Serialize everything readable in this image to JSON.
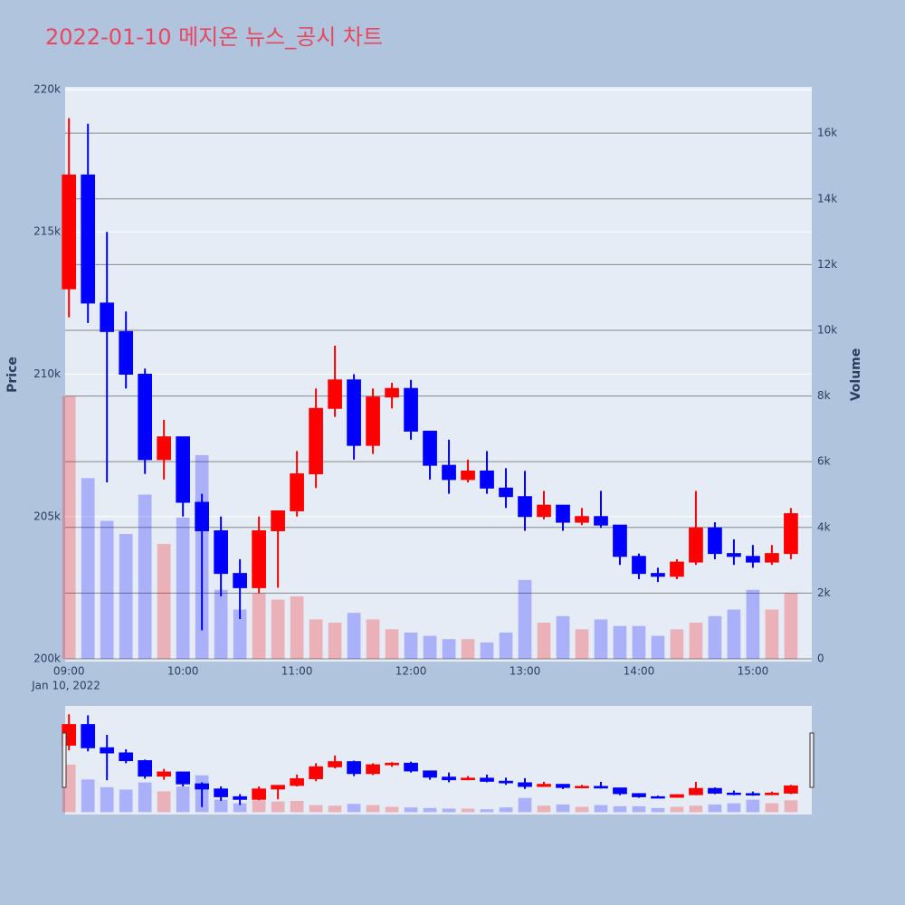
{
  "chart_data": {
    "type": "candlestick",
    "title": "2022-01-10 메지온 뉴스_공시 차트",
    "ylabel": "Price",
    "y2label": "Volume",
    "x_annotation": "Jan 10, 2022",
    "x": [
      "09:00",
      "09:10",
      "09:20",
      "09:30",
      "09:40",
      "09:50",
      "10:00",
      "10:10",
      "10:20",
      "10:30",
      "10:40",
      "10:50",
      "11:00",
      "11:10",
      "11:20",
      "11:30",
      "11:40",
      "11:50",
      "12:00",
      "12:10",
      "12:20",
      "12:30",
      "12:40",
      "12:50",
      "13:00",
      "13:10",
      "13:20",
      "13:30",
      "13:40",
      "13:50",
      "14:00",
      "14:10",
      "14:20",
      "14:30",
      "14:40",
      "14:50",
      "15:00",
      "15:10",
      "15:20"
    ],
    "open": [
      213000,
      217000,
      212500,
      211500,
      210000,
      207000,
      207800,
      205500,
      204500,
      203000,
      202500,
      204500,
      205200,
      206500,
      208800,
      209800,
      207500,
      209200,
      209500,
      208000,
      206800,
      206300,
      206600,
      206000,
      205700,
      205000,
      205400,
      204800,
      205000,
      204700,
      203600,
      203000,
      202900,
      203400,
      204600,
      203700,
      203600,
      203400,
      203700
    ],
    "high": [
      219000,
      218800,
      215000,
      212200,
      210200,
      208400,
      207800,
      205800,
      205000,
      203500,
      205000,
      205000,
      207300,
      209500,
      211000,
      210000,
      209500,
      209700,
      209800,
      208000,
      207700,
      207000,
      207300,
      206700,
      206600,
      205900,
      205400,
      205300,
      205900,
      204700,
      203700,
      203200,
      203500,
      205900,
      204800,
      204200,
      204000,
      204000,
      205300
    ],
    "low": [
      212000,
      211800,
      206200,
      209500,
      206500,
      206300,
      205000,
      201000,
      202200,
      201400,
      202300,
      202500,
      205000,
      206000,
      208500,
      207000,
      207200,
      208800,
      207700,
      206300,
      205800,
      206200,
      205800,
      205300,
      204500,
      204900,
      204500,
      204700,
      204600,
      203300,
      202800,
      202700,
      202800,
      203300,
      203500,
      203300,
      203200,
      203300,
      203500
    ],
    "close": [
      217000,
      212500,
      211500,
      210000,
      207000,
      207800,
      205500,
      204500,
      203000,
      202500,
      204500,
      205200,
      206500,
      208800,
      209800,
      207500,
      209200,
      209500,
      208000,
      206800,
      206300,
      206600,
      206000,
      205700,
      205000,
      205400,
      204800,
      205000,
      204700,
      203600,
      203000,
      202900,
      203400,
      204600,
      203700,
      203600,
      203400,
      203700,
      205100
    ],
    "volume": [
      8000,
      5500,
      4200,
      3800,
      5000,
      3500,
      4300,
      6200,
      2100,
      1500,
      2000,
      1800,
      1900,
      1200,
      1100,
      1400,
      1200,
      900,
      800,
      700,
      600,
      600,
      500,
      800,
      2400,
      1100,
      1300,
      900,
      1200,
      1000,
      1000,
      700,
      900,
      1100,
      1300,
      1500,
      2100,
      1500,
      2000
    ],
    "increasing_color": "#ff0000",
    "decreasing_color": "#0000ff",
    "xlim": [
      "08:58",
      "15:31"
    ],
    "xticks": [
      "09:00",
      "10:00",
      "11:00",
      "12:00",
      "13:00",
      "14:00",
      "15:00"
    ],
    "ylim": [
      199905,
      220095
    ],
    "yticks": [
      {
        "value": 200000,
        "label": "200k"
      },
      {
        "value": 205000,
        "label": "205k"
      },
      {
        "value": 210000,
        "label": "210k"
      },
      {
        "value": 215000,
        "label": "215k"
      },
      {
        "value": 220000,
        "label": "220k"
      }
    ],
    "y2lim": [
      -83,
      17410
    ],
    "y2ticks": [
      0,
      {
        "value": 2000,
        "label": "2k"
      },
      {
        "value": 4000,
        "label": "4k"
      },
      {
        "value": 6000,
        "label": "6k"
      },
      {
        "value": 8000,
        "label": "8k"
      },
      {
        "value": 10000,
        "label": "10k"
      },
      {
        "value": 12000,
        "label": "12k"
      },
      {
        "value": 14000,
        "label": "14k"
      },
      {
        "value": 16000,
        "label": "16k"
      }
    ],
    "grid": true,
    "rangeslider": true
  }
}
